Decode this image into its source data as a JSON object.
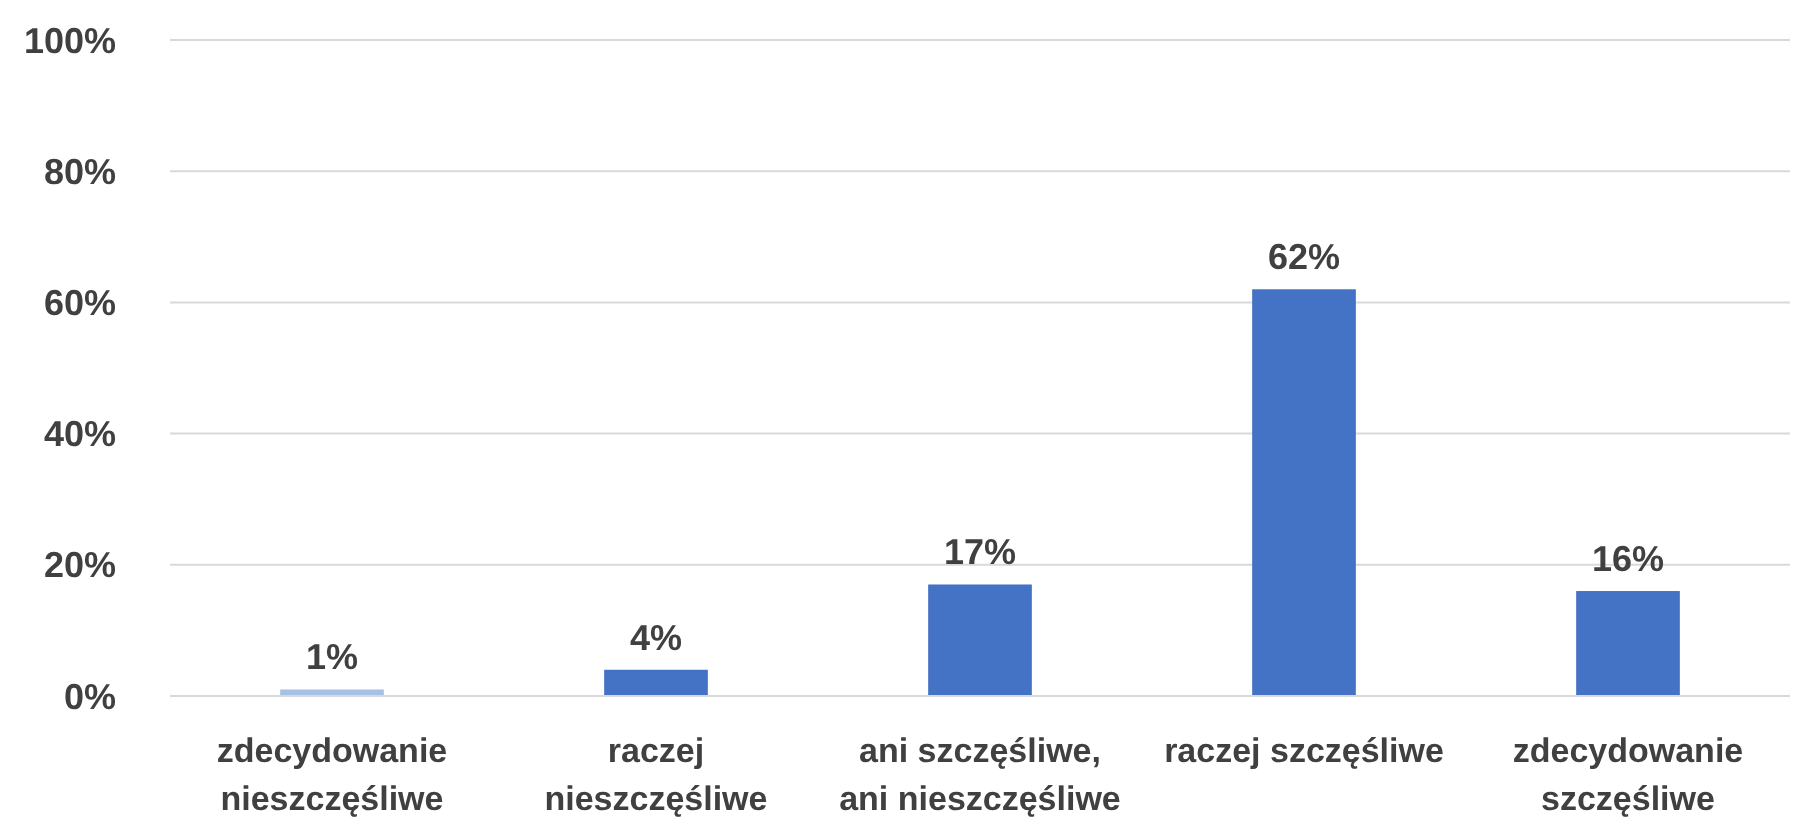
{
  "chart_data": {
    "type": "bar",
    "categories": [
      "zdecydowanie nieszczęśliwe",
      "raczej nieszczęśliwe",
      "ani szczęśliwe, ani nieszczęśliwe",
      "raczej szczęśliwe",
      "zdecydowanie szczęśliwe"
    ],
    "values": [
      1,
      4,
      17,
      62,
      16
    ],
    "colors": [
      "#a9c0e6",
      "#4472c4",
      "#4472c4",
      "#4472c4",
      "#4472c4"
    ],
    "value_labels": [
      "1%",
      "4%",
      "17%",
      "62%",
      "16%"
    ],
    "ylim": [
      0,
      100
    ],
    "yticks": [
      {
        "value": 0,
        "label": "0%"
      },
      {
        "value": 20,
        "label": "20%"
      },
      {
        "value": 40,
        "label": "40%"
      },
      {
        "value": 60,
        "label": "60%"
      },
      {
        "value": 80,
        "label": "80%"
      },
      {
        "value": 100,
        "label": "100%"
      }
    ],
    "grid": "y"
  }
}
